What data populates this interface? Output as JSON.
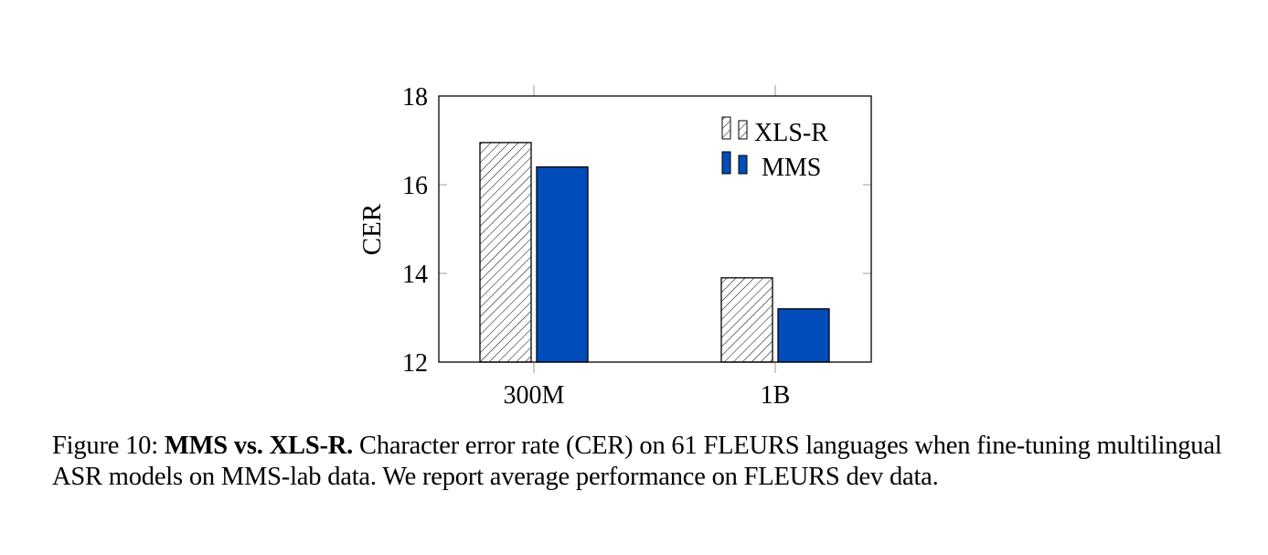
{
  "chart_data": {
    "type": "bar",
    "categories": [
      "300M",
      "1B"
    ],
    "series": [
      {
        "name": "XLS-R",
        "values": [
          16.95,
          13.9
        ],
        "fill": "hatch",
        "color": "#000000"
      },
      {
        "name": "MMS",
        "values": [
          16.4,
          13.2
        ],
        "fill": "solid",
        "color": "#004cba"
      }
    ],
    "ylabel": "CER",
    "xlabel": "",
    "ylim": [
      12,
      18
    ],
    "yticks": [
      12,
      14,
      16,
      18
    ],
    "grid": false,
    "legend_position": "top-right"
  },
  "caption": {
    "label": "Figure 10:",
    "bold": "MMS vs. XLS-R.",
    "text": "Character error rate (CER) on 61 FLEURS languages when fine-tuning multilingual ASR models on MMS-lab data. We report average performance on FLEURS dev data."
  }
}
